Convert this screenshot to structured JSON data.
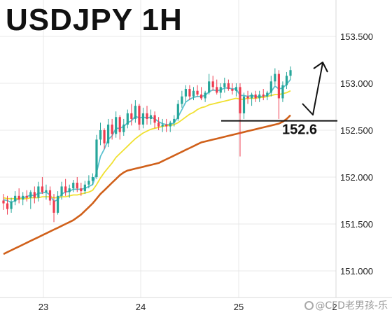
{
  "chart_data": {
    "type": "candlestick",
    "title": "USDJPY 1H",
    "xlabel": "",
    "ylabel": "",
    "x_tick_labels": [
      "23",
      "24",
      "25",
      "2"
    ],
    "y_ticks": [
      "151.000",
      "151.500",
      "152.000",
      "152.500",
      "153.000",
      "153.500"
    ],
    "ylim": [
      150.75,
      153.75
    ],
    "grid": true,
    "candles": [
      [
        151.75,
        151.82,
        151.65,
        151.72
      ],
      [
        151.72,
        151.8,
        151.6,
        151.66
      ],
      [
        151.66,
        151.78,
        151.62,
        151.74
      ],
      [
        151.74,
        151.85,
        151.7,
        151.8
      ],
      [
        151.8,
        151.88,
        151.72,
        151.76
      ],
      [
        151.76,
        151.84,
        151.7,
        151.8
      ],
      [
        151.8,
        151.86,
        151.74,
        151.78
      ],
      [
        151.78,
        151.86,
        151.66,
        151.84
      ],
      [
        151.84,
        151.9,
        151.72,
        151.78
      ],
      [
        151.78,
        151.95,
        151.74,
        151.9
      ],
      [
        151.9,
        152.0,
        151.82,
        151.84
      ],
      [
        151.84,
        151.92,
        151.76,
        151.86
      ],
      [
        151.86,
        151.9,
        151.7,
        151.75
      ],
      [
        151.75,
        151.82,
        151.52,
        151.62
      ],
      [
        151.62,
        151.85,
        151.6,
        151.8
      ],
      [
        151.8,
        151.95,
        151.76,
        151.9
      ],
      [
        151.9,
        151.98,
        151.8,
        151.84
      ],
      [
        151.84,
        151.92,
        151.78,
        151.88
      ],
      [
        151.88,
        151.97,
        151.84,
        151.94
      ],
      [
        151.94,
        152.0,
        151.84,
        151.88
      ],
      [
        151.88,
        151.94,
        151.8,
        151.85
      ],
      [
        151.85,
        151.96,
        151.82,
        151.92
      ],
      [
        151.92,
        152.02,
        151.88,
        151.96
      ],
      [
        151.96,
        152.04,
        151.92,
        152.0
      ],
      [
        152.0,
        152.45,
        151.98,
        152.4
      ],
      [
        152.4,
        152.58,
        152.34,
        152.5
      ],
      [
        152.5,
        152.52,
        152.3,
        152.36
      ],
      [
        152.36,
        152.62,
        152.32,
        152.56
      ],
      [
        152.56,
        152.62,
        152.4,
        152.46
      ],
      [
        152.46,
        152.7,
        152.42,
        152.64
      ],
      [
        152.64,
        152.66,
        152.4,
        152.48
      ],
      [
        152.48,
        152.62,
        152.44,
        152.56
      ],
      [
        152.56,
        152.72,
        152.52,
        152.68
      ],
      [
        152.68,
        152.78,
        152.55,
        152.62
      ],
      [
        152.62,
        152.82,
        152.58,
        152.76
      ],
      [
        152.76,
        152.78,
        152.5,
        152.56
      ],
      [
        152.56,
        152.74,
        152.52,
        152.68
      ],
      [
        152.68,
        152.76,
        152.56,
        152.62
      ],
      [
        152.62,
        152.72,
        152.56,
        152.66
      ],
      [
        152.66,
        152.7,
        152.52,
        152.58
      ],
      [
        152.58,
        152.64,
        152.5,
        152.54
      ],
      [
        152.54,
        152.62,
        152.48,
        152.56
      ],
      [
        152.56,
        152.62,
        152.48,
        152.54
      ],
      [
        152.54,
        152.6,
        152.48,
        152.58
      ],
      [
        152.58,
        152.66,
        152.54,
        152.62
      ],
      [
        152.62,
        152.82,
        152.6,
        152.78
      ],
      [
        152.78,
        152.92,
        152.74,
        152.86
      ],
      [
        152.86,
        152.98,
        152.8,
        152.94
      ],
      [
        152.94,
        152.98,
        152.82,
        152.86
      ],
      [
        152.86,
        152.96,
        152.82,
        152.92
      ],
      [
        152.92,
        152.98,
        152.86,
        152.88
      ],
      [
        152.88,
        152.96,
        152.82,
        152.84
      ],
      [
        152.84,
        152.92,
        152.8,
        152.9
      ],
      [
        152.9,
        153.1,
        152.88,
        153.02
      ],
      [
        153.02,
        153.08,
        152.92,
        152.96
      ],
      [
        152.96,
        153.04,
        152.88,
        152.9
      ],
      [
        152.9,
        153.0,
        152.84,
        152.96
      ],
      [
        152.96,
        153.06,
        152.9,
        153.0
      ],
      [
        153.0,
        153.04,
        152.92,
        152.94
      ],
      [
        152.94,
        153.0,
        152.88,
        152.92
      ],
      [
        152.92,
        153.0,
        152.86,
        152.96
      ],
      [
        152.96,
        153.0,
        152.22,
        152.68
      ],
      [
        152.68,
        152.9,
        152.62,
        152.86
      ],
      [
        152.86,
        152.92,
        152.78,
        152.84
      ],
      [
        152.84,
        152.9,
        152.76,
        152.88
      ],
      [
        152.88,
        152.92,
        152.8,
        152.84
      ],
      [
        152.84,
        152.92,
        152.8,
        152.88
      ],
      [
        152.88,
        152.94,
        152.82,
        152.86
      ],
      [
        152.86,
        152.92,
        152.82,
        152.9
      ],
      [
        152.9,
        153.08,
        152.86,
        153.02
      ],
      [
        153.02,
        153.16,
        152.98,
        153.1
      ],
      [
        153.1,
        153.14,
        152.62,
        152.84
      ],
      [
        152.84,
        153.02,
        152.8,
        152.98
      ],
      [
        152.98,
        153.12,
        152.94,
        153.08
      ],
      [
        153.08,
        153.18,
        153.04,
        153.14
      ]
    ],
    "series": [
      {
        "name": "",
        "color": "#5cc2d0",
        "values": [
          151.76,
          151.75,
          151.73,
          151.75,
          151.77,
          151.78,
          151.79,
          151.81,
          151.8,
          151.83,
          151.83,
          151.84,
          151.81,
          151.74,
          151.76,
          151.82,
          151.84,
          151.85,
          151.87,
          151.87,
          151.87,
          151.88,
          151.9,
          151.92,
          152.05,
          152.22,
          152.3,
          152.4,
          152.44,
          152.52,
          152.52,
          152.54,
          152.58,
          152.6,
          152.65,
          152.63,
          152.64,
          152.63,
          152.64,
          152.62,
          152.59,
          152.57,
          152.56,
          152.56,
          152.58,
          152.64,
          152.72,
          152.8,
          152.83,
          152.85,
          152.86,
          152.86,
          152.87,
          152.91,
          152.93,
          152.92,
          152.93,
          152.95,
          152.95,
          152.94,
          152.94,
          152.87,
          152.87,
          152.86,
          152.87,
          152.86,
          152.86,
          152.86,
          152.87,
          152.91,
          152.97,
          152.94,
          152.95,
          152.99,
          153.04
        ]
      },
      {
        "name": "",
        "color": "#f0e030",
        "values": [
          151.78,
          151.77,
          151.77,
          151.77,
          151.77,
          151.77,
          151.77,
          151.78,
          151.78,
          151.78,
          151.79,
          151.79,
          151.79,
          151.78,
          151.78,
          151.79,
          151.79,
          151.8,
          151.81,
          151.81,
          151.82,
          151.83,
          151.84,
          151.86,
          151.92,
          151.99,
          152.05,
          152.1,
          152.15,
          152.21,
          152.25,
          152.29,
          152.33,
          152.37,
          152.41,
          152.44,
          152.47,
          152.49,
          152.51,
          152.52,
          152.53,
          152.54,
          152.55,
          152.55,
          152.56,
          152.58,
          152.61,
          152.64,
          152.67,
          152.69,
          152.72,
          152.74,
          152.75,
          152.77,
          152.78,
          152.79,
          152.8,
          152.81,
          152.82,
          152.83,
          152.84,
          152.83,
          152.83,
          152.84,
          152.84,
          152.84,
          152.85,
          152.85,
          152.86,
          152.87,
          152.88,
          152.88,
          152.89,
          152.9,
          152.92
        ]
      },
      {
        "name": "",
        "color": "#d0601a",
        "values": [
          151.18,
          151.2,
          151.22,
          151.24,
          151.26,
          151.28,
          151.3,
          151.32,
          151.34,
          151.36,
          151.38,
          151.4,
          151.42,
          151.44,
          151.46,
          151.48,
          151.5,
          151.52,
          151.54,
          151.57,
          151.6,
          151.64,
          151.68,
          151.72,
          151.77,
          151.82,
          151.86,
          151.9,
          151.94,
          151.98,
          152.02,
          152.05,
          152.07,
          152.08,
          152.09,
          152.1,
          152.11,
          152.12,
          152.13,
          152.14,
          152.15,
          152.17,
          152.19,
          152.21,
          152.23,
          152.25,
          152.27,
          152.29,
          152.31,
          152.33,
          152.35,
          152.37,
          152.38,
          152.39,
          152.4,
          152.41,
          152.42,
          152.43,
          152.44,
          152.45,
          152.46,
          152.47,
          152.48,
          152.49,
          152.5,
          152.51,
          152.52,
          152.53,
          152.54,
          152.55,
          152.56,
          152.57,
          152.59,
          152.62,
          152.66
        ]
      }
    ],
    "support_level": 152.6,
    "support_label": "152.6",
    "colors": {
      "up": "#26a69a",
      "down": "#ef3b4f",
      "grid": "#e8e8e8",
      "text": "#222222"
    }
  },
  "watermark": "@CFD老男孩-乐"
}
